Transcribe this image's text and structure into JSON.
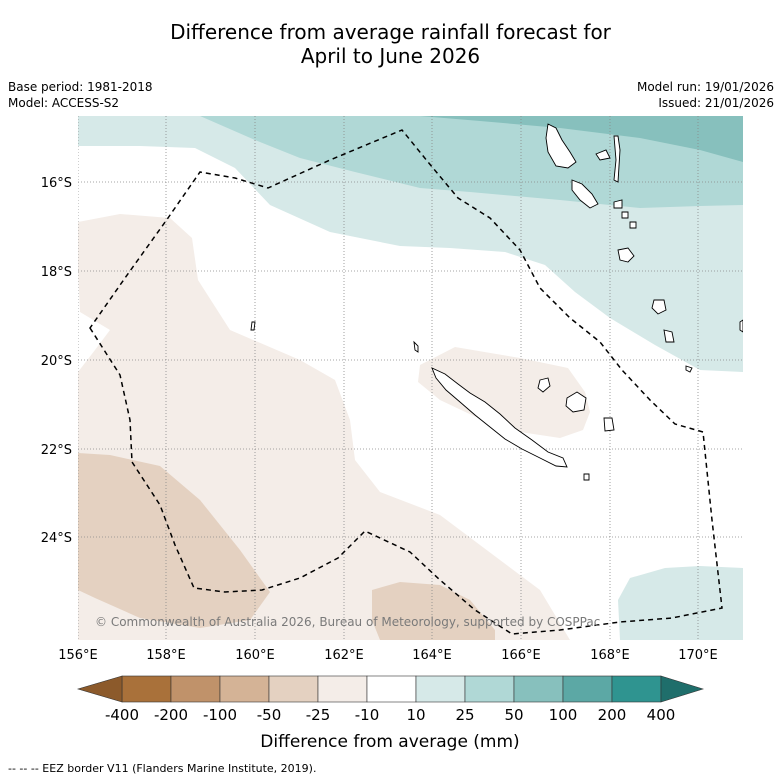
{
  "title": {
    "line1": "Difference from average rainfall forecast for",
    "line2": "April to June 2026"
  },
  "meta": {
    "base_period": "Base period: 1981-2018",
    "model": "Model: ACCESS-S2",
    "model_run": "Model run: 19/01/2026",
    "issued": "Issued: 21/01/2026"
  },
  "map": {
    "lat_labels": [
      "16°S",
      "18°S",
      "20°S",
      "22°S",
      "24°S"
    ],
    "lon_labels": [
      "156°E",
      "158°E",
      "160°E",
      "162°E",
      "164°E",
      "166°E",
      "168°E",
      "170°E"
    ],
    "copyright": "© Commonwealth of Australia 2026, Bureau of Meteorology, supported by COSPPac"
  },
  "colorbar": {
    "tick_labels": [
      "-400",
      "-200",
      "-100",
      "-50",
      "-25",
      "-10",
      "10",
      "25",
      "50",
      "100",
      "200",
      "400"
    ],
    "colors": [
      "#a9713a",
      "#c0926a",
      "#d4b396",
      "#e4d1c1",
      "#f4ede8",
      "#ffffff",
      "#d6e9e8",
      "#b0d8d6",
      "#87c0bd",
      "#5ca8a5",
      "#2f9490"
    ],
    "extend_low_color": "#8c5a2b",
    "extend_high_color": "#1f6e6b",
    "title": "Difference from average (mm)"
  },
  "footer": "-- -- -- EEZ border V11 (Flanders Marine Institute, 2019)."
}
